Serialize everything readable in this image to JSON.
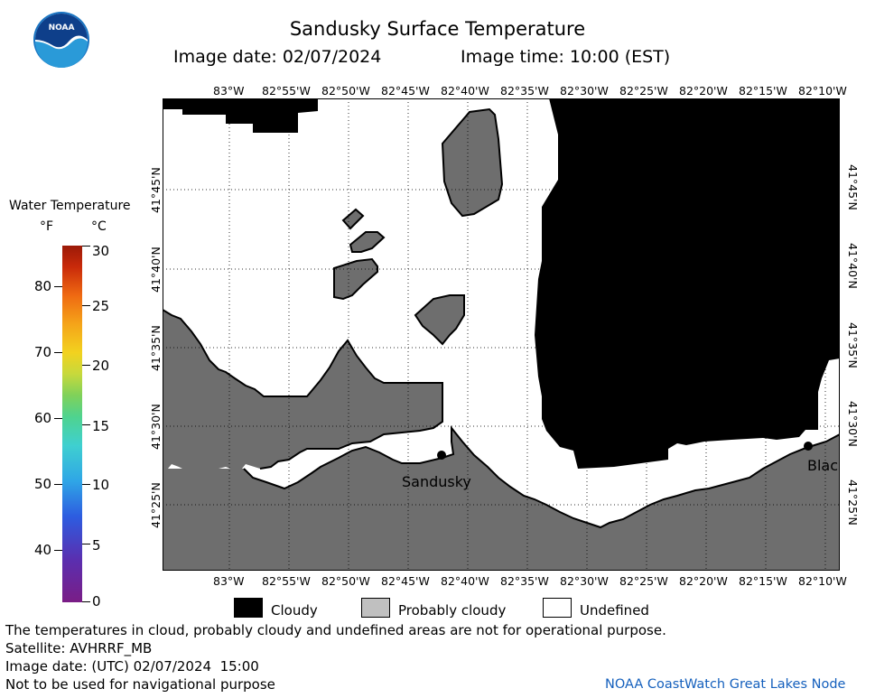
{
  "header": {
    "title": "Sandusky Surface Temperature",
    "image_date": "Image date: 02/07/2024",
    "image_time": "Image time: 10:00 (EST)"
  },
  "scale": {
    "title": "Water Temperature",
    "unit_f": "°F",
    "unit_c": "°C",
    "f_ticks": [
      "80",
      "70",
      "60",
      "50",
      "40"
    ],
    "c_ticks": [
      "30",
      "25",
      "20",
      "15",
      "10",
      "5",
      "0"
    ]
  },
  "map": {
    "lon_labels": [
      "83°W",
      "82°55'W",
      "82°50'W",
      "82°45'W",
      "82°40'W",
      "82°35'W",
      "82°30'W",
      "82°25'W",
      "82°20'W",
      "82°15'W",
      "82°10'W"
    ],
    "lat_labels": [
      "41°45'N",
      "41°40'N",
      "41°35'N",
      "41°30'N",
      "41°25'N"
    ],
    "cities": [
      "Sandusky",
      "Blac"
    ]
  },
  "legend": {
    "cloudy": "Cloudy",
    "probably_cloudy": "Probably cloudy",
    "undefined": "Undefined",
    "colors": {
      "cloudy": "#000000",
      "probably_cloudy": "#c0c0c0",
      "undefined": "#ffffff",
      "land": "#6e6e6e"
    }
  },
  "footer": {
    "note": "The temperatures in cloud, probably cloudy and undefined areas are not for operational purpose.",
    "satellite": "Satellite: AVHRRF_MB",
    "utc_date": "Image date: (UTC) 02/07/2024  15:00",
    "nav": "Not to be used for navigational purpose",
    "node": "NOAA CoastWatch Great Lakes Node"
  }
}
